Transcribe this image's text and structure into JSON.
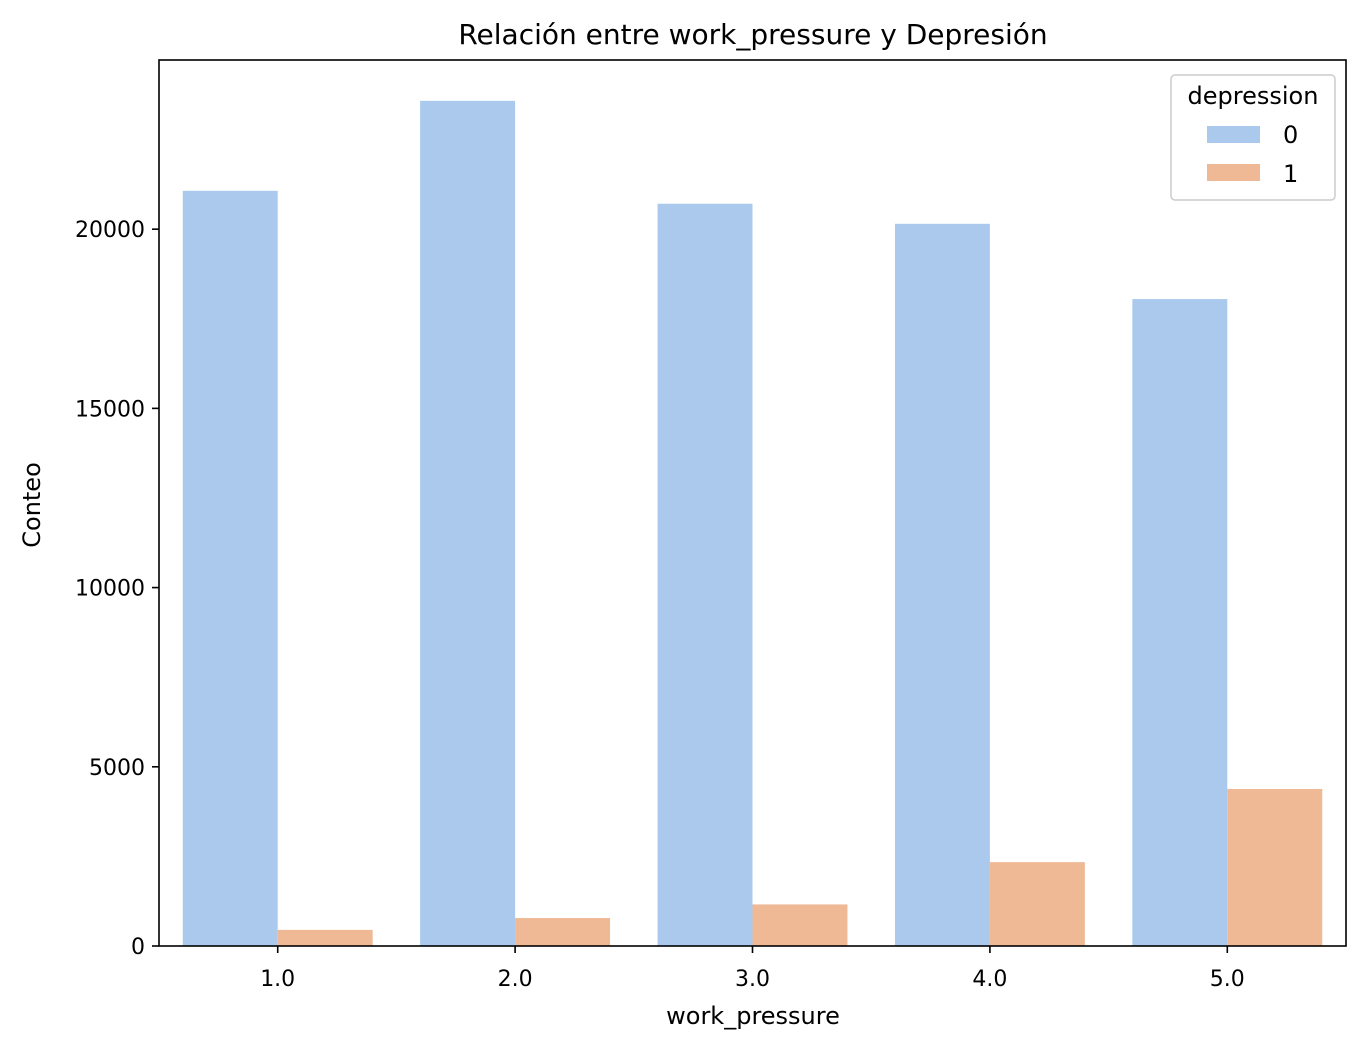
{
  "chart_data": {
    "type": "bar",
    "title": "Relación entre work_pressure y Depresión",
    "xlabel": "work_pressure",
    "ylabel": "Conteo",
    "categories": [
      "1.0",
      "2.0",
      "3.0",
      "4.0",
      "5.0"
    ],
    "series": [
      {
        "name": "0",
        "color": "#abc9ed",
        "values": [
          21070,
          23580,
          20710,
          20150,
          18050
        ]
      },
      {
        "name": "1",
        "color": "#f0b995",
        "values": [
          450,
          780,
          1160,
          2340,
          4380
        ]
      }
    ],
    "ylim": [
      0,
      24720
    ],
    "yticks": [
      0,
      5000,
      10000,
      15000,
      20000
    ],
    "grid": false,
    "legend": {
      "title": "depression",
      "placement": "top-right"
    }
  }
}
